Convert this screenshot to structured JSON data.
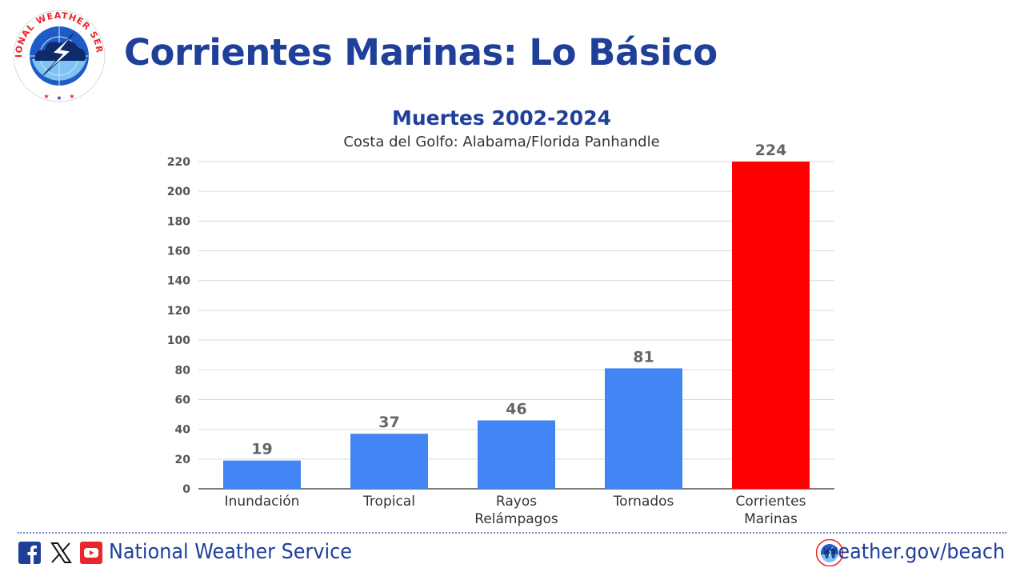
{
  "header": {
    "title": "Corrientes Marinas: Lo Básico",
    "logo_text": "NATIONAL WEATHER SERVICE"
  },
  "chart_data": {
    "type": "bar",
    "title": "Muertes 2002-2024",
    "subtitle": "Costa del Golfo: Alabama/Florida Panhandle",
    "categories": [
      "Inundación",
      "Tropical",
      "Rayos Relámpagos",
      "Tornados",
      "Corrientes Marinas"
    ],
    "category_lines": [
      [
        "Inundación"
      ],
      [
        "Tropical"
      ],
      [
        "Rayos",
        "Relámpagos"
      ],
      [
        "Tornados"
      ],
      [
        "Corrientes",
        "Marinas"
      ]
    ],
    "values": [
      19,
      37,
      46,
      81,
      224
    ],
    "data_labels": [
      "19",
      "37",
      "46",
      "81",
      "224"
    ],
    "colors": [
      "#4285f4",
      "#4285f4",
      "#4285f4",
      "#4285f4",
      "#ff0000"
    ],
    "ylim": [
      0,
      220
    ],
    "yticks": [
      0,
      20,
      40,
      60,
      80,
      100,
      120,
      140,
      160,
      180,
      200,
      220
    ],
    "grid": true,
    "title_color": "#1f3f99"
  },
  "footer": {
    "social_icons": [
      "facebook-icon",
      "x-icon",
      "youtube-icon"
    ],
    "org": "National Weather Service",
    "url": "weather.gov/beach",
    "accent": "#1f3f99"
  }
}
